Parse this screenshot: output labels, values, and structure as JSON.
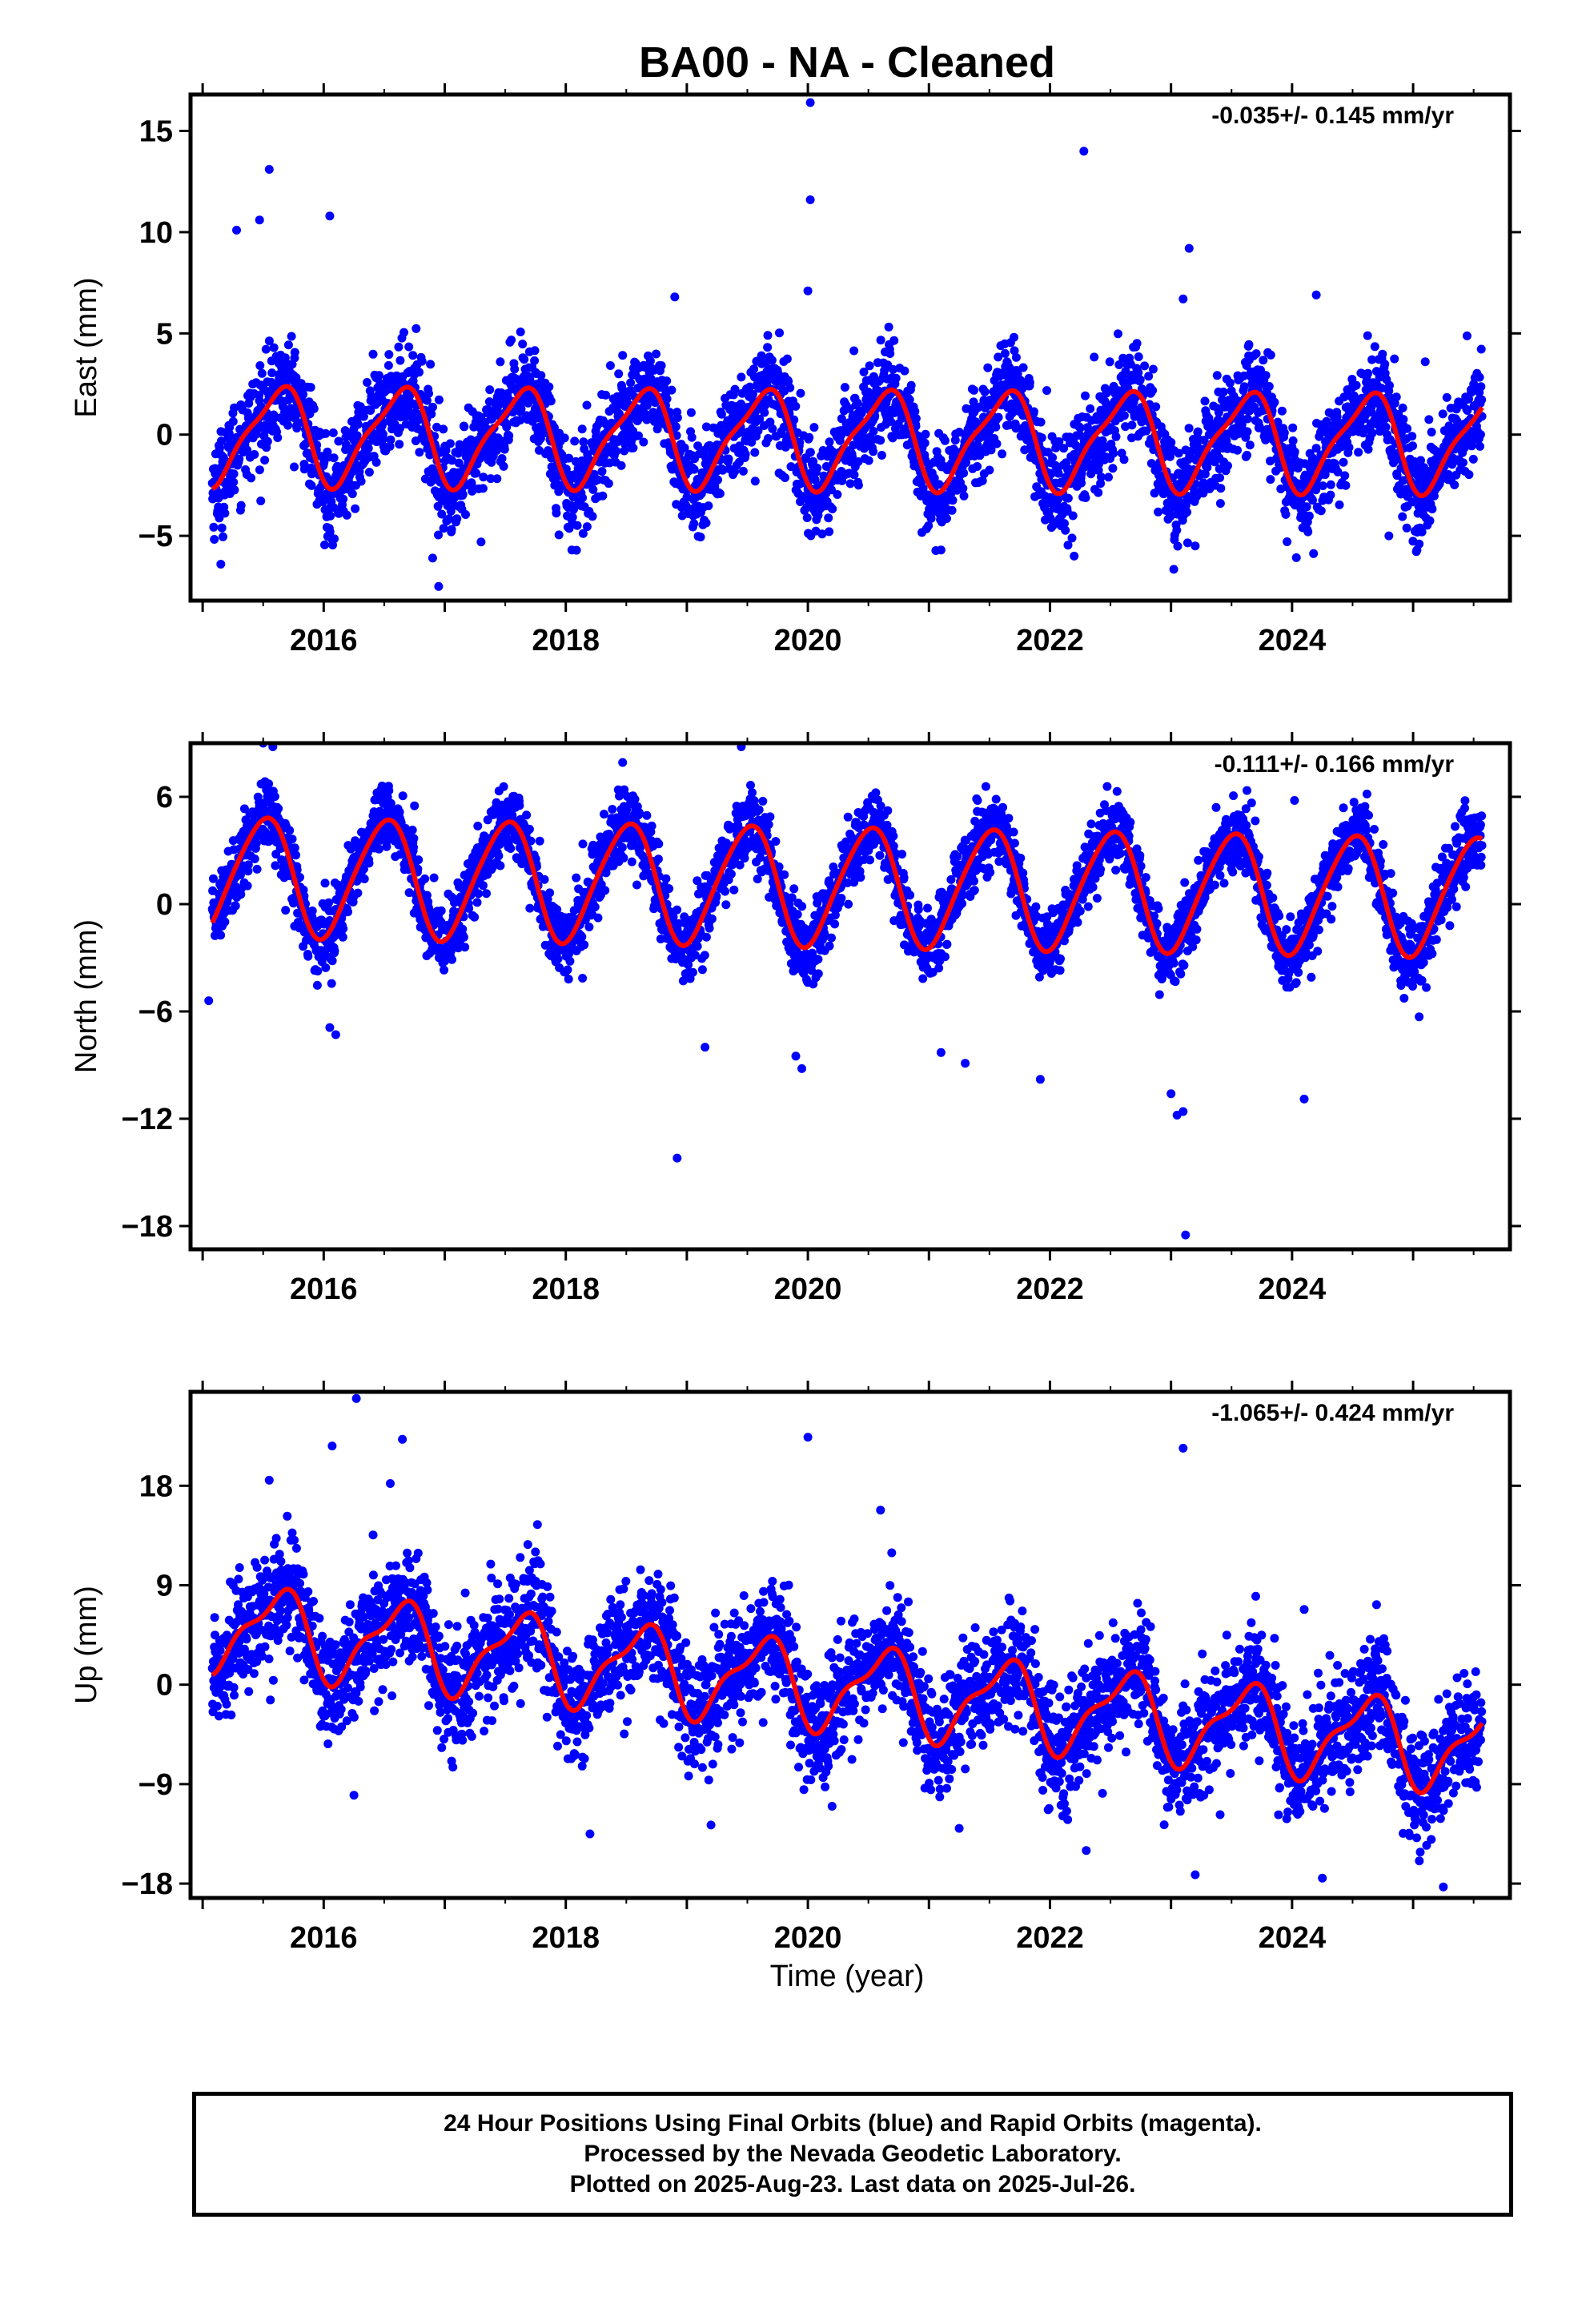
{
  "title": "BA00  - NA - Cleaned",
  "x_axis_label": "Time (year)",
  "footer": {
    "line1": "24 Hour Positions Using Final Orbits (blue) and Rapid Orbits (magenta).",
    "line2": "Processed by the Nevada Geodetic Laboratory.",
    "line3": "Plotted on 2025-Aug-23. Last data on 2025-Jul-26."
  },
  "colors": {
    "points": "#0000ff",
    "fit": "#ff0000",
    "frame": "#000000"
  },
  "chart_data": [
    {
      "type": "scatter",
      "component": "east",
      "ylabel": "East (mm)",
      "rate_text": "-0.035+/- 0.145 mm/yr",
      "xlim": [
        2014.9,
        2025.8
      ],
      "ylim": [
        -8.2,
        16.8
      ],
      "x_ticks": [
        2016,
        2018,
        2020,
        2022,
        2024
      ],
      "y_ticks": [
        -5,
        0,
        5,
        10,
        15
      ],
      "data_start": 2015.08,
      "data_end": 2025.57,
      "model": {
        "offset_mm": 0.0,
        "trend_mm_per_yr": -0.035,
        "annual_amp_mm": 2.3,
        "annual_peak": 0.62,
        "semiannual_amp_mm": 0.6,
        "scatter_mm": 1.2
      },
      "outliers": [
        {
          "x": 2015.55,
          "y": 13.1
        },
        {
          "x": 2015.28,
          "y": 10.1
        },
        {
          "x": 2015.47,
          "y": 10.6
        },
        {
          "x": 2016.05,
          "y": 10.8
        },
        {
          "x": 2015.15,
          "y": -6.4
        },
        {
          "x": 2016.9,
          "y": -6.1
        },
        {
          "x": 2016.95,
          "y": -7.5
        },
        {
          "x": 2017.3,
          "y": -5.3
        },
        {
          "x": 2018.05,
          "y": -5.7
        },
        {
          "x": 2018.9,
          "y": 6.8
        },
        {
          "x": 2020.02,
          "y": 16.4
        },
        {
          "x": 2020.02,
          "y": 11.6
        },
        {
          "x": 2020.0,
          "y": 7.1
        },
        {
          "x": 2022.28,
          "y": 14.0
        },
        {
          "x": 2022.2,
          "y": -6.0
        },
        {
          "x": 2021.1,
          "y": -5.7
        },
        {
          "x": 2023.15,
          "y": 9.2
        },
        {
          "x": 2023.1,
          "y": 6.7
        },
        {
          "x": 2024.2,
          "y": 6.9
        },
        {
          "x": 2023.2,
          "y": -5.5
        },
        {
          "x": 2025.05,
          "y": -5.4
        },
        {
          "x": 2024.8,
          "y": -5.0
        },
        {
          "x": 2025.1,
          "y": 3.6
        }
      ]
    },
    {
      "type": "scatter",
      "component": "north",
      "ylabel": "North (mm)",
      "rate_text": "-0.111+/- 0.166 mm/yr",
      "xlim": [
        2014.9,
        2025.8
      ],
      "ylim": [
        -19.3,
        9.0
      ],
      "x_ticks": [
        2016,
        2018,
        2020,
        2022,
        2024
      ],
      "y_ticks": [
        -18,
        -12,
        -6,
        0,
        6
      ],
      "data_start": 2015.08,
      "data_end": 2025.57,
      "model": {
        "offset_mm": 1.6,
        "trend_mm_per_yr": -0.111,
        "annual_amp_mm": 3.3,
        "annual_peak": 0.5,
        "semiannual_amp_mm": 0.4,
        "scatter_mm": 1.0
      },
      "outliers": [
        {
          "x": 2015.5,
          "y": 9.0
        },
        {
          "x": 2015.58,
          "y": 8.8
        },
        {
          "x": 2019.45,
          "y": 8.8
        },
        {
          "x": 2018.92,
          "y": -14.2
        },
        {
          "x": 2019.15,
          "y": -8.0
        },
        {
          "x": 2019.9,
          "y": -8.5
        },
        {
          "x": 2019.95,
          "y": -9.2
        },
        {
          "x": 2021.1,
          "y": -8.3
        },
        {
          "x": 2021.3,
          "y": -8.9
        },
        {
          "x": 2021.92,
          "y": -9.8
        },
        {
          "x": 2023.0,
          "y": -10.6
        },
        {
          "x": 2023.05,
          "y": -11.8
        },
        {
          "x": 2023.1,
          "y": -11.6
        },
        {
          "x": 2023.12,
          "y": -18.5
        },
        {
          "x": 2024.1,
          "y": -10.9
        },
        {
          "x": 2016.05,
          "y": -6.9
        },
        {
          "x": 2016.1,
          "y": -7.3
        },
        {
          "x": 2016.75,
          "y": 5.5
        },
        {
          "x": 2024.02,
          "y": 5.8
        },
        {
          "x": 2025.05,
          "y": -6.3
        },
        {
          "x": 2015.05,
          "y": -5.4
        }
      ]
    },
    {
      "type": "scatter",
      "component": "up",
      "ylabel": "Up (mm)",
      "rate_text": "-1.065+/- 0.424 mm/yr",
      "xlim": [
        2014.9,
        2025.8
      ],
      "ylim": [
        -19.3,
        26.5
      ],
      "x_ticks": [
        2016,
        2018,
        2020,
        2022,
        2024
      ],
      "y_ticks": [
        -18,
        -9,
        0,
        9,
        18
      ],
      "data_start": 2015.08,
      "data_end": 2025.57,
      "model": {
        "offset_mm": 5.3,
        "trend_mm_per_yr": -1.065,
        "annual_amp_mm": 3.6,
        "annual_peak": 0.62,
        "semiannual_amp_mm": 1.3,
        "scatter_mm": 2.6
      },
      "outliers": [
        {
          "x": 2016.27,
          "y": 25.9
        },
        {
          "x": 2016.65,
          "y": 22.2
        },
        {
          "x": 2016.07,
          "y": 21.6
        },
        {
          "x": 2020.0,
          "y": 22.4
        },
        {
          "x": 2023.1,
          "y": 21.4
        },
        {
          "x": 2015.55,
          "y": 18.5
        },
        {
          "x": 2016.55,
          "y": 18.2
        },
        {
          "x": 2020.6,
          "y": 15.8
        },
        {
          "x": 2016.25,
          "y": -10.0
        },
        {
          "x": 2018.2,
          "y": -13.5
        },
        {
          "x": 2019.2,
          "y": -12.7
        },
        {
          "x": 2020.2,
          "y": -11.0
        },
        {
          "x": 2021.25,
          "y": -13.0
        },
        {
          "x": 2022.3,
          "y": -15.0
        },
        {
          "x": 2023.2,
          "y": -17.2
        },
        {
          "x": 2024.25,
          "y": -17.5
        },
        {
          "x": 2025.25,
          "y": -18.3
        },
        {
          "x": 2023.7,
          "y": 8.0
        },
        {
          "x": 2024.1,
          "y": 6.8
        }
      ]
    }
  ]
}
